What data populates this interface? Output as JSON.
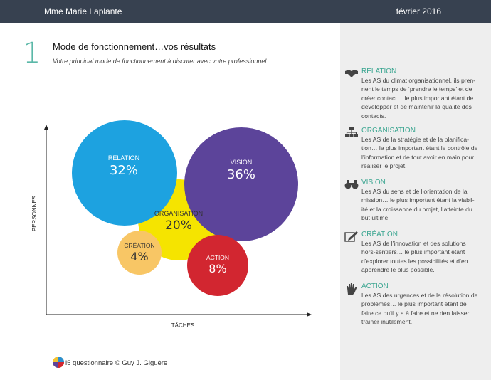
{
  "header": {
    "name": "Mme Marie Laplante",
    "date": "février 2016"
  },
  "section": {
    "number": "1",
    "title": "Mode de fonctionnement…vos résultats",
    "subtitle": "Votre principal mode de fonctionnement à discuter avec votre professionnel"
  },
  "chart_data": {
    "type": "bubble",
    "xlabel": "TÂCHES",
    "ylabel": "PERSONNES",
    "series": [
      {
        "label": "RELATION",
        "value_label": "32%",
        "value": 32,
        "color": "#1da2e0"
      },
      {
        "label": "VISION",
        "value_label": "36%",
        "value": 36,
        "color": "#5c449a"
      },
      {
        "label": "ORGANISATION",
        "value_label": "20%",
        "value": 20,
        "color": "#f5e400"
      },
      {
        "label": "CRÉATION",
        "value_label": "4%",
        "value": 4,
        "color": "#f8c665"
      },
      {
        "label": "ACTION",
        "value_label": "8%",
        "value": 8,
        "color": "#d22630"
      }
    ]
  },
  "legend": [
    {
      "icon": "handshake-icon",
      "title": "RELATION",
      "text": "Les AS du climat organisationnel, ils pren-nent le temps de ‘prendre le temps’ et de créer contact… le plus important étant de développer et de maintenir la qualité des contacts."
    },
    {
      "icon": "org-chart-icon",
      "title": "ORGANISATION",
      "text": "Les AS de la stratégie et de la planifica-tion… le plus important étant le contrôle de l’information et de tout avoir en main pour réaliser le projet."
    },
    {
      "icon": "binoculars-icon",
      "title": "VISION",
      "text": "Les AS du sens et de l’orientation de la mission… le plus important étant la viabil-ité et la croissance du projet, l’atteinte du but ultime."
    },
    {
      "icon": "pencil-edit-icon",
      "title": "CRÉATION",
      "text": "Les AS de l’innovation et des solutions hors-sentiers… le plus important étant d’explorer toutes les possibilités et d’en apprendre le plus possible."
    },
    {
      "icon": "hand-icon",
      "title": "ACTION",
      "text": "Les AS des urgences et de la résolution de problèmes… le plus important étant de faire ce qu’il y a à faire et ne rien laisser traîner inutilement."
    }
  ],
  "footer": {
    "logo_text": "i5",
    "text": "questionnaire © Guy J. Giguère"
  },
  "colors": {
    "header_bg": "#374150",
    "accent": "#3aa590",
    "sidebar_bg": "#eeeeee"
  }
}
